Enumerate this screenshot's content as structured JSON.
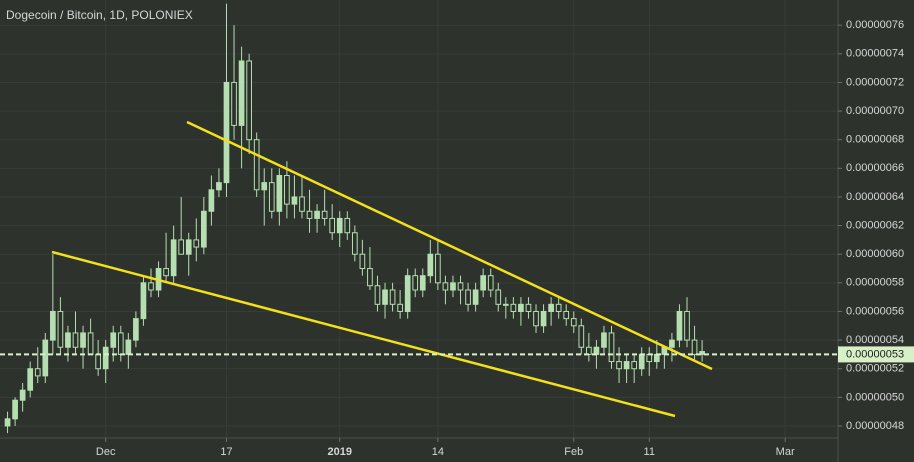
{
  "chart_data": {
    "type": "candlestick",
    "title": "Dogecoin / Bitcoin, 1D, POLONIEX",
    "up_color": "#b5dfb0",
    "down_color": "#2b302b",
    "wick_color": "#b5dfb0",
    "x": [
      "2018-11-18",
      "2018-11-19",
      "2018-11-20",
      "2018-11-21",
      "2018-11-22",
      "2018-11-23",
      "2018-11-24",
      "2018-11-25",
      "2018-11-26",
      "2018-11-27",
      "2018-11-28",
      "2018-11-29",
      "2018-11-30",
      "2018-12-01",
      "2018-12-02",
      "2018-12-03",
      "2018-12-04",
      "2018-12-05",
      "2018-12-06",
      "2018-12-07",
      "2018-12-08",
      "2018-12-09",
      "2018-12-10",
      "2018-12-11",
      "2018-12-12",
      "2018-12-13",
      "2018-12-14",
      "2018-12-15",
      "2018-12-16",
      "2018-12-17",
      "2018-12-18",
      "2018-12-19",
      "2018-12-20",
      "2018-12-21",
      "2018-12-22",
      "2018-12-23",
      "2018-12-24",
      "2018-12-25",
      "2018-12-26",
      "2018-12-27",
      "2018-12-28",
      "2018-12-29",
      "2018-12-30",
      "2018-12-31",
      "2019-01-01",
      "2019-01-02",
      "2019-01-03",
      "2019-01-04",
      "2019-01-05",
      "2019-01-06",
      "2019-01-07",
      "2019-01-08",
      "2019-01-09",
      "2019-01-10",
      "2019-01-11",
      "2019-01-12",
      "2019-01-13",
      "2019-01-14",
      "2019-01-15",
      "2019-01-16",
      "2019-01-17",
      "2019-01-18",
      "2019-01-19",
      "2019-01-20",
      "2019-01-21",
      "2019-01-22",
      "2019-01-23",
      "2019-01-24",
      "2019-01-25",
      "2019-01-26",
      "2019-01-27",
      "2019-01-28",
      "2019-01-29",
      "2019-01-30",
      "2019-01-31",
      "2019-02-01",
      "2019-02-02",
      "2019-02-03",
      "2019-02-04",
      "2019-02-05",
      "2019-02-06",
      "2019-02-07",
      "2019-02-08",
      "2019-02-09",
      "2019-02-10",
      "2019-02-11",
      "2019-02-12",
      "2019-02-13",
      "2019-02-14",
      "2019-02-15",
      "2019-02-16",
      "2019-02-17",
      "2019-02-18"
    ],
    "ohlc": [
      [
        4.8e-07,
        4.9e-07,
        4.75e-07,
        4.85e-07
      ],
      [
        4.85e-07,
        5e-07,
        4.8e-07,
        4.98e-07
      ],
      [
        4.98e-07,
        5.1e-07,
        4.9e-07,
        5.05e-07
      ],
      [
        5.05e-07,
        5.25e-07,
        5e-07,
        5.2e-07
      ],
      [
        5.2e-07,
        5.35e-07,
        5.1e-07,
        5.15e-07
      ],
      [
        5.15e-07,
        5.45e-07,
        5.1e-07,
        5.4e-07
      ],
      [
        5.4e-07,
        6e-07,
        5.3e-07,
        5.6e-07
      ],
      [
        5.6e-07,
        5.7e-07,
        5.3e-07,
        5.35e-07
      ],
      [
        5.35e-07,
        5.5e-07,
        5.25e-07,
        5.45e-07
      ],
      [
        5.45e-07,
        5.6e-07,
        5.3e-07,
        5.35e-07
      ],
      [
        5.35e-07,
        5.5e-07,
        5.2e-07,
        5.45e-07
      ],
      [
        5.45e-07,
        5.55e-07,
        5.3e-07,
        5.3e-07
      ],
      [
        5.3e-07,
        5.4e-07,
        5.15e-07,
        5.2e-07
      ],
      [
        5.2e-07,
        5.4e-07,
        5.1e-07,
        5.35e-07
      ],
      [
        5.35e-07,
        5.5e-07,
        5.25e-07,
        5.45e-07
      ],
      [
        5.45e-07,
        5.5e-07,
        5.25e-07,
        5.3e-07
      ],
      [
        5.3e-07,
        5.45e-07,
        5.2e-07,
        5.4e-07
      ],
      [
        5.4e-07,
        5.6e-07,
        5.35e-07,
        5.55e-07
      ],
      [
        5.55e-07,
        5.85e-07,
        5.5e-07,
        5.8e-07
      ],
      [
        5.8e-07,
        5.9e-07,
        5.7e-07,
        5.75e-07
      ],
      [
        5.75e-07,
        5.95e-07,
        5.7e-07,
        5.9e-07
      ],
      [
        5.9e-07,
        6.15e-07,
        5.8e-07,
        5.85e-07
      ],
      [
        5.85e-07,
        6.2e-07,
        5.8e-07,
        6.1e-07
      ],
      [
        6.1e-07,
        6.4e-07,
        6e-07,
        6e-07
      ],
      [
        6e-07,
        6.15e-07,
        5.85e-07,
        6.1e-07
      ],
      [
        6.1e-07,
        6.25e-07,
        5.95e-07,
        6.05e-07
      ],
      [
        6.05e-07,
        6.4e-07,
        6e-07,
        6.3e-07
      ],
      [
        6.3e-07,
        6.55e-07,
        6.2e-07,
        6.45e-07
      ],
      [
        6.45e-07,
        6.6e-07,
        6.4e-07,
        6.5e-07
      ],
      [
        6.5e-07,
        7.75e-07,
        6.4e-07,
        7.2e-07
      ],
      [
        7.2e-07,
        7.6e-07,
        6.8e-07,
        6.9e-07
      ],
      [
        6.9e-07,
        7.45e-07,
        6.6e-07,
        7.35e-07
      ],
      [
        7.35e-07,
        7.4e-07,
        6.7e-07,
        6.8e-07
      ],
      [
        6.8e-07,
        6.85e-07,
        6.4e-07,
        6.45e-07
      ],
      [
        6.45e-07,
        6.6e-07,
        6.2e-07,
        6.5e-07
      ],
      [
        6.5e-07,
        6.6e-07,
        6.25e-07,
        6.3e-07
      ],
      [
        6.3e-07,
        6.6e-07,
        6.2e-07,
        6.55e-07
      ],
      [
        6.55e-07,
        6.65e-07,
        6.25e-07,
        6.35e-07
      ],
      [
        6.35e-07,
        6.55e-07,
        6.25e-07,
        6.4e-07
      ],
      [
        6.4e-07,
        6.55e-07,
        6.25e-07,
        6.3e-07
      ],
      [
        6.3e-07,
        6.45e-07,
        6.15e-07,
        6.25e-07
      ],
      [
        6.25e-07,
        6.35e-07,
        6.15e-07,
        6.3e-07
      ],
      [
        6.3e-07,
        6.45e-07,
        6.2e-07,
        6.25e-07
      ],
      [
        6.25e-07,
        6.35e-07,
        6.1e-07,
        6.15e-07
      ],
      [
        6.15e-07,
        6.3e-07,
        6.05e-07,
        6.25e-07
      ],
      [
        6.25e-07,
        6.3e-07,
        6.1e-07,
        6.15e-07
      ],
      [
        6.15e-07,
        6.2e-07,
        5.95e-07,
        6e-07
      ],
      [
        6e-07,
        6.1e-07,
        5.85e-07,
        5.9e-07
      ],
      [
        5.9e-07,
        6.05e-07,
        5.75e-07,
        5.78e-07
      ],
      [
        5.78e-07,
        5.85e-07,
        5.6e-07,
        5.65e-07
      ],
      [
        5.65e-07,
        5.8e-07,
        5.55e-07,
        5.75e-07
      ],
      [
        5.75e-07,
        5.8e-07,
        5.6e-07,
        5.65e-07
      ],
      [
        5.65e-07,
        5.75e-07,
        5.55e-07,
        5.6e-07
      ],
      [
        5.6e-07,
        5.9e-07,
        5.55e-07,
        5.85e-07
      ],
      [
        5.85e-07,
        5.9e-07,
        5.7e-07,
        5.75e-07
      ],
      [
        5.75e-07,
        5.9e-07,
        5.7e-07,
        5.85e-07
      ],
      [
        5.85e-07,
        6.1e-07,
        5.8e-07,
        6e-07
      ],
      [
        6e-07,
        6.1e-07,
        5.75e-07,
        5.8e-07
      ],
      [
        5.8e-07,
        5.85e-07,
        5.65e-07,
        5.75e-07
      ],
      [
        5.75e-07,
        5.85e-07,
        5.7e-07,
        5.8e-07
      ],
      [
        5.8e-07,
        5.85e-07,
        5.65e-07,
        5.75e-07
      ],
      [
        5.75e-07,
        5.8e-07,
        5.6e-07,
        5.65e-07
      ],
      [
        5.65e-07,
        5.8e-07,
        5.6e-07,
        5.75e-07
      ],
      [
        5.75e-07,
        5.9e-07,
        5.7e-07,
        5.85e-07
      ],
      [
        5.85e-07,
        5.9e-07,
        5.7e-07,
        5.75e-07
      ],
      [
        5.75e-07,
        5.8e-07,
        5.6e-07,
        5.65e-07
      ],
      [
        5.65e-07,
        5.7e-07,
        5.55e-07,
        5.65e-07
      ],
      [
        5.65e-07,
        5.7e-07,
        5.55e-07,
        5.6e-07
      ],
      [
        5.6e-07,
        5.7e-07,
        5.5e-07,
        5.65e-07
      ],
      [
        5.65e-07,
        5.7e-07,
        5.55e-07,
        5.6e-07
      ],
      [
        5.6e-07,
        5.65e-07,
        5.45e-07,
        5.5e-07
      ],
      [
        5.5e-07,
        5.65e-07,
        5.45e-07,
        5.6e-07
      ],
      [
        5.6e-07,
        5.7e-07,
        5.5e-07,
        5.65e-07
      ],
      [
        5.65e-07,
        5.7e-07,
        5.55e-07,
        5.6e-07
      ],
      [
        5.6e-07,
        5.65e-07,
        5.5e-07,
        5.55e-07
      ],
      [
        5.55e-07,
        5.6e-07,
        5.45e-07,
        5.5e-07
      ],
      [
        5.5e-07,
        5.55e-07,
        5.3e-07,
        5.35e-07
      ],
      [
        5.35e-07,
        5.45e-07,
        5.25e-07,
        5.3e-07
      ],
      [
        5.3e-07,
        5.4e-07,
        5.2e-07,
        5.35e-07
      ],
      [
        5.35e-07,
        5.5e-07,
        5.3e-07,
        5.45e-07
      ],
      [
        5.45e-07,
        5.5e-07,
        5.2e-07,
        5.25e-07
      ],
      [
        5.25e-07,
        5.35e-07,
        5.1e-07,
        5.2e-07
      ],
      [
        5.2e-07,
        5.3e-07,
        5.1e-07,
        5.25e-07
      ],
      [
        5.25e-07,
        5.3e-07,
        5.1e-07,
        5.2e-07
      ],
      [
        5.2e-07,
        5.35e-07,
        5.15e-07,
        5.3e-07
      ],
      [
        5.3e-07,
        5.35e-07,
        5.15e-07,
        5.25e-07
      ],
      [
        5.25e-07,
        5.4e-07,
        5.2e-07,
        5.3e-07
      ],
      [
        5.3e-07,
        5.35e-07,
        5.2e-07,
        5.35e-07
      ],
      [
        5.35e-07,
        5.45e-07,
        5.25e-07,
        5.4e-07
      ],
      [
        5.4e-07,
        5.65e-07,
        5.35e-07,
        5.6e-07
      ],
      [
        5.6e-07,
        5.7e-07,
        5.35e-07,
        5.4e-07
      ],
      [
        5.4e-07,
        5.5e-07,
        5.25e-07,
        5.3e-07
      ],
      [
        5.3e-07,
        5.4e-07,
        5.25e-07,
        5.32e-07
      ]
    ],
    "xlim": [
      "2018-11-17",
      "2019-03-08"
    ],
    "xticks": [
      {
        "value": "2018-12-01",
        "label": "Dec"
      },
      {
        "value": "2018-12-17",
        "label": "17"
      },
      {
        "value": "2019-01-01",
        "label": "2019"
      },
      {
        "value": "2019-01-14",
        "label": "14"
      },
      {
        "value": "2019-02-01",
        "label": "Feb"
      },
      {
        "value": "2019-02-11",
        "label": "11"
      },
      {
        "value": "2019-03-01",
        "label": "Mar"
      }
    ],
    "ylim": [
      4.716e-07,
      7.776e-07
    ],
    "yticks": [
      {
        "value": 4.8e-07,
        "label": "0.00000048"
      },
      {
        "value": 5e-07,
        "label": "0.00000050"
      },
      {
        "value": 5.2e-07,
        "label": "0.00000052"
      },
      {
        "value": 5.4e-07,
        "label": "0.00000054"
      },
      {
        "value": 5.6e-07,
        "label": "0.00000056"
      },
      {
        "value": 5.8e-07,
        "label": "0.00000058"
      },
      {
        "value": 6e-07,
        "label": "0.00000060"
      },
      {
        "value": 6.2e-07,
        "label": "0.00000062"
      },
      {
        "value": 6.4e-07,
        "label": "0.00000064"
      },
      {
        "value": 6.6e-07,
        "label": "0.00000066"
      },
      {
        "value": 6.8e-07,
        "label": "0.00000068"
      },
      {
        "value": 7e-07,
        "label": "0.00000070"
      },
      {
        "value": 7.2e-07,
        "label": "0.00000072"
      },
      {
        "value": 7.4e-07,
        "label": "0.00000074"
      },
      {
        "value": 7.6e-07,
        "label": "0.00000076"
      }
    ],
    "last_price": {
      "value": 5.3e-07,
      "label": "0.00000053"
    },
    "grid": true
  }
}
